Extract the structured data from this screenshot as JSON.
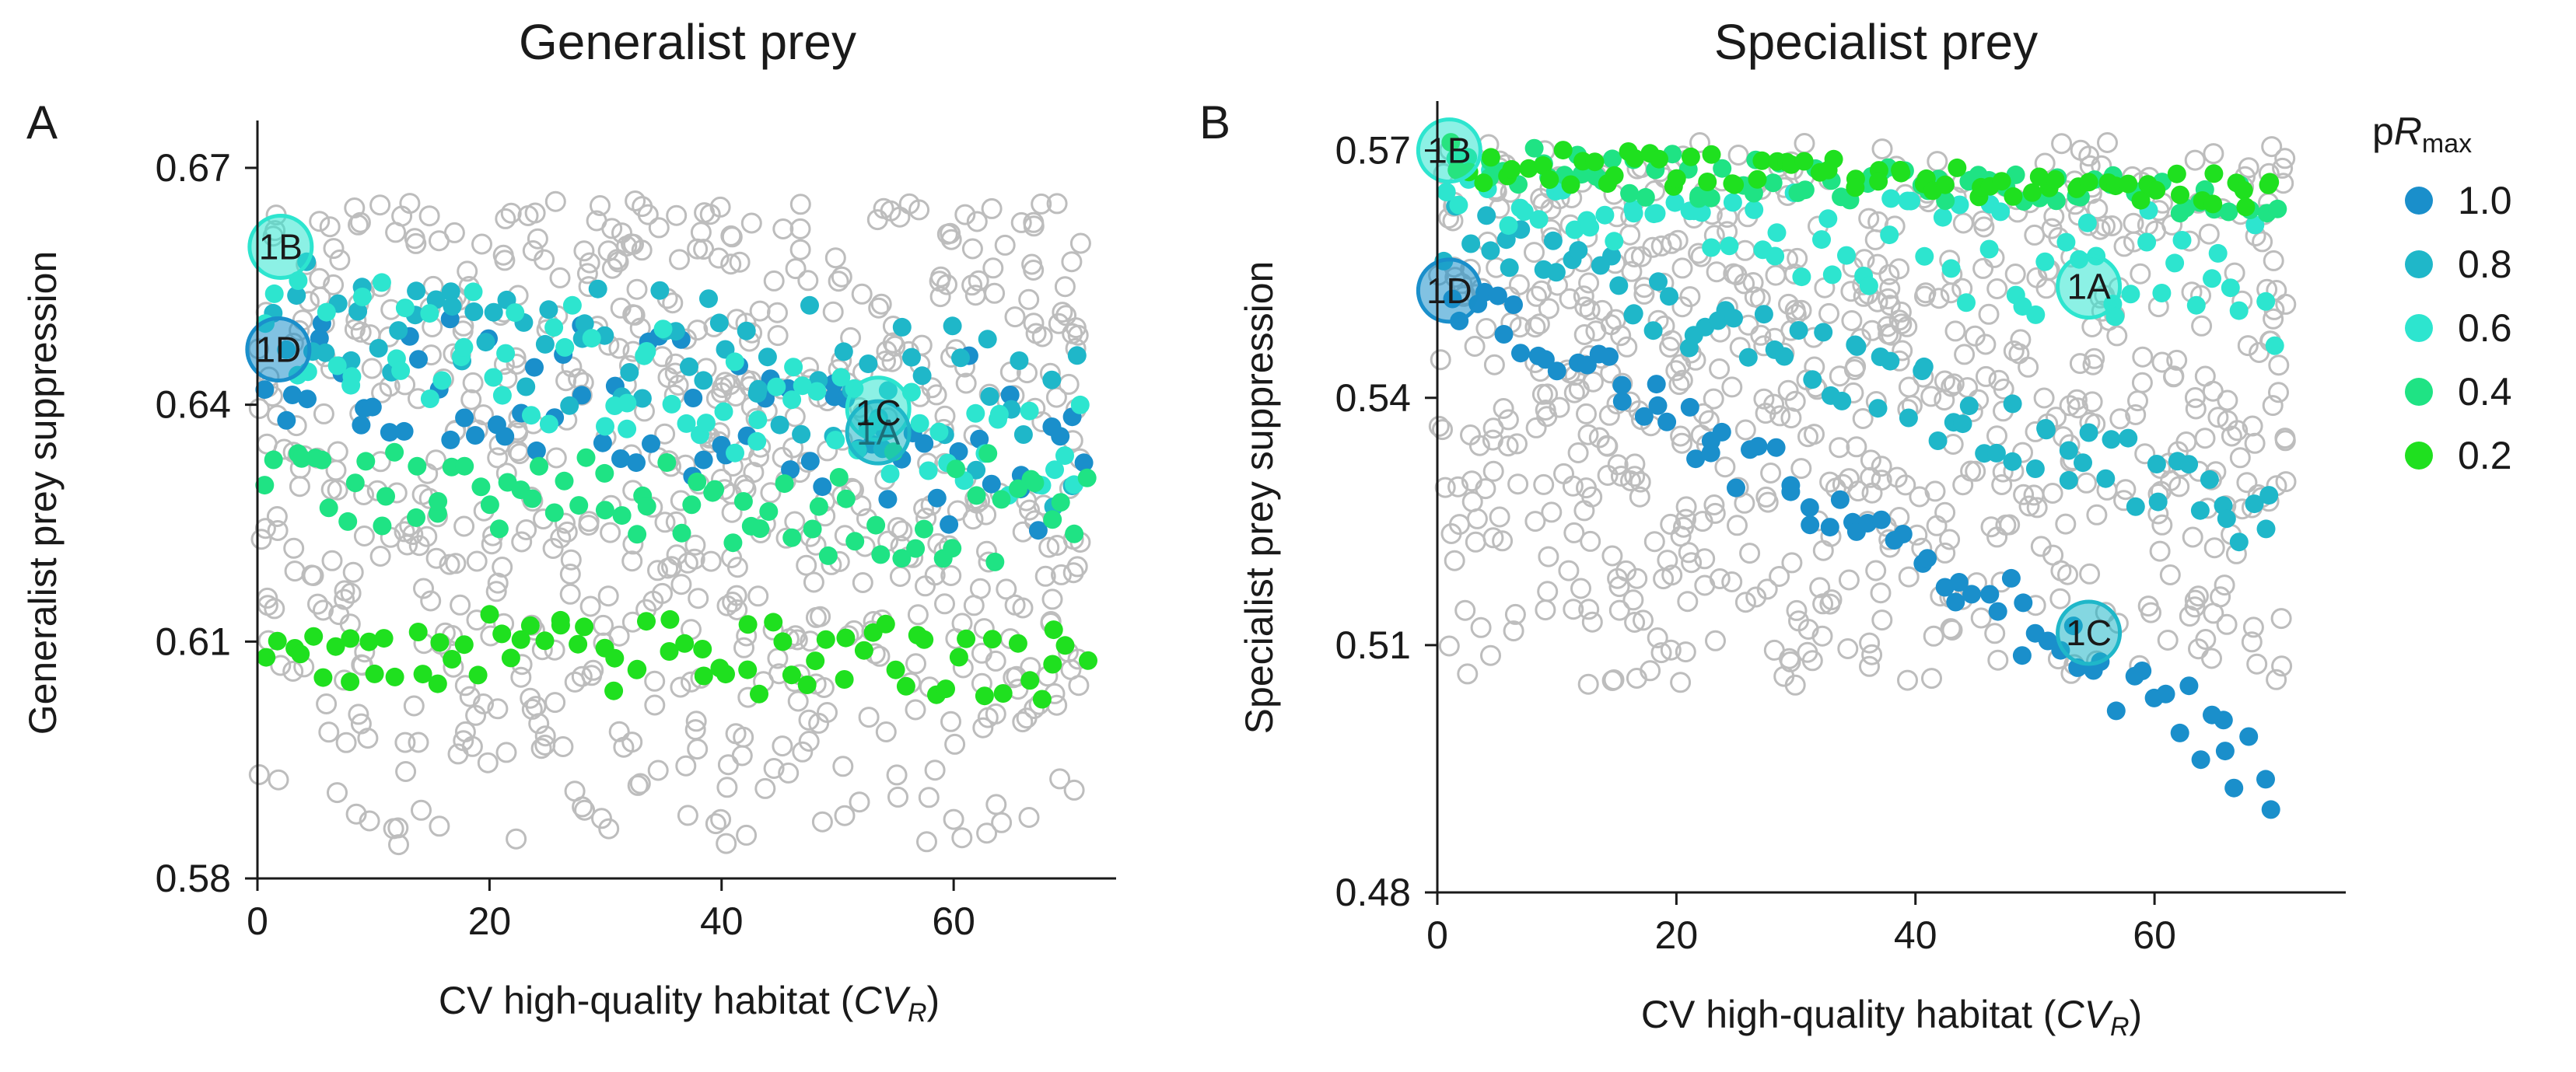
{
  "legend": {
    "title_prefix": "p",
    "title_var": "R",
    "title_sub": "max",
    "entries": [
      {
        "label": "1.0",
        "color": "#1a8fcb"
      },
      {
        "label": "0.8",
        "color": "#1fb7c9"
      },
      {
        "label": "0.6",
        "color": "#2de5cf"
      },
      {
        "label": "0.4",
        "color": "#1fe384"
      },
      {
        "label": "0.2",
        "color": "#1fe01f"
      }
    ],
    "placement": "right"
  },
  "other_marker": {
    "style": "open-circle",
    "color": "#bdbdbd"
  },
  "chart_data": [
    {
      "type": "scatter",
      "panel": "A",
      "title": "Generalist prey",
      "xlabel_text": "CV high-quality habitat (",
      "xlabel_var": "CV",
      "xlabel_sub": "R",
      "xlabel_close": ")",
      "ylabel": "Generalist prey suppression",
      "xlim": [
        0,
        74
      ],
      "ylim": [
        0.58,
        0.676
      ],
      "xticks": [
        0,
        20,
        40,
        60
      ],
      "xtick_labels": [
        "0",
        "20",
        "40",
        "60"
      ],
      "yticks": [
        0.58,
        0.61,
        0.64,
        0.67
      ],
      "ytick_labels": [
        "0.58",
        "0.61",
        "0.64",
        "0.67"
      ],
      "grid": false,
      "series": [
        {
          "name": "1.0",
          "color": "#1a8fcb",
          "x_range": [
            1,
            71
          ],
          "y_start": [
            0.638,
            0.652
          ],
          "y_end": [
            0.622,
            0.648
          ]
        },
        {
          "name": "0.8",
          "color": "#1fb7c9",
          "x_range": [
            1,
            71
          ],
          "y_start": [
            0.647,
            0.662
          ],
          "y_end": [
            0.626,
            0.648
          ]
        },
        {
          "name": "0.6",
          "color": "#2de5cf",
          "x_range": [
            1,
            71
          ],
          "y_start": [
            0.643,
            0.658
          ],
          "y_end": [
            0.624,
            0.644
          ]
        },
        {
          "name": "0.4",
          "color": "#1fe384",
          "x_range": [
            1,
            71
          ],
          "y_start": [
            0.625,
            0.635
          ],
          "y_end": [
            0.619,
            0.634
          ]
        },
        {
          "name": "0.2",
          "color": "#1fe01f",
          "x_range": [
            1,
            71
          ],
          "y_start": [
            0.605,
            0.614
          ],
          "y_end": [
            0.602,
            0.612
          ]
        }
      ],
      "background": {
        "x_range": [
          0,
          71
        ],
        "y_range": [
          0.584,
          0.666
        ]
      },
      "annotations": [
        {
          "label": "1B",
          "x": 2,
          "y": 0.66,
          "color": "#2de5cf"
        },
        {
          "label": "1D",
          "x": 1.8,
          "y": 0.647,
          "color": "#1a8fcb"
        },
        {
          "label": "1A",
          "x": 53.5,
          "y": 0.6395,
          "color": "#2de5cf",
          "label_dy": -0.003
        },
        {
          "label": "1C",
          "x": 53.5,
          "y": 0.6365,
          "color": "#1fb7c9",
          "label_dy": 0.0025
        }
      ]
    },
    {
      "type": "scatter",
      "panel": "B",
      "title": "Specialist prey",
      "xlabel_text": "CV high-quality habitat (",
      "xlabel_var": "CV",
      "xlabel_sub": "R",
      "xlabel_close": ")",
      "ylabel": "Specialist prey suppression",
      "xlim": [
        0,
        76
      ],
      "ylim": [
        0.48,
        0.576
      ],
      "xticks": [
        0,
        20,
        40,
        60
      ],
      "xtick_labels": [
        "0",
        "20",
        "40",
        "60"
      ],
      "yticks": [
        0.48,
        0.51,
        0.54,
        0.57
      ],
      "ytick_labels": [
        "0.48",
        "0.51",
        "0.54",
        "0.57"
      ],
      "grid": false,
      "series": [
        {
          "name": "1.0",
          "color": "#1a8fcb",
          "x_range": [
            1,
            70
          ],
          "y_start": [
            0.55,
            0.556
          ],
          "y_end": [
            0.49,
            0.5
          ]
        },
        {
          "name": "0.8",
          "color": "#1fb7c9",
          "x_range": [
            1,
            70
          ],
          "y_start": [
            0.556,
            0.564
          ],
          "y_end": [
            0.52,
            0.53
          ]
        },
        {
          "name": "0.6",
          "color": "#2de5cf",
          "x_range": [
            1,
            70
          ],
          "y_start": [
            0.562,
            0.568
          ],
          "y_end": [
            0.545,
            0.562
          ]
        },
        {
          "name": "0.4",
          "color": "#1fe384",
          "x_range": [
            1,
            70
          ],
          "y_start": [
            0.565,
            0.571
          ],
          "y_end": [
            0.562,
            0.566
          ]
        },
        {
          "name": "0.2",
          "color": "#1fe01f",
          "x_range": [
            1,
            70
          ],
          "y_start": [
            0.566,
            0.571
          ],
          "y_end": [
            0.563,
            0.567
          ]
        }
      ],
      "background": {
        "x_range": [
          0,
          71
        ],
        "y_range": [
          0.505,
          0.571
        ]
      },
      "annotations": [
        {
          "label": "1B",
          "x": 1,
          "y": 0.57,
          "color": "#2de5cf"
        },
        {
          "label": "1D",
          "x": 1,
          "y": 0.553,
          "color": "#1a8fcb"
        },
        {
          "label": "1A",
          "x": 54.5,
          "y": 0.5535,
          "color": "#2de5cf"
        },
        {
          "label": "1C",
          "x": 54.5,
          "y": 0.5115,
          "color": "#1fb7c9"
        }
      ]
    }
  ]
}
